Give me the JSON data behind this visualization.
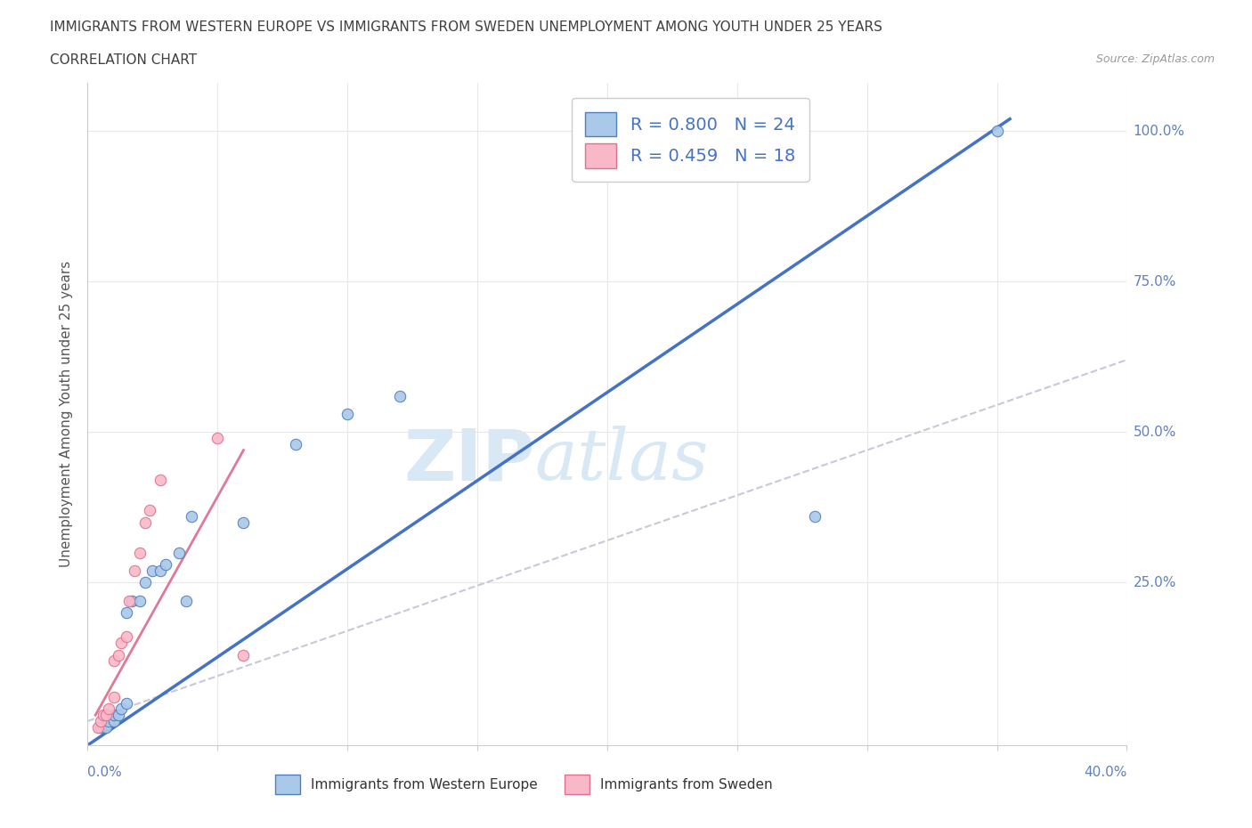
{
  "title_line1": "IMMIGRANTS FROM WESTERN EUROPE VS IMMIGRANTS FROM SWEDEN UNEMPLOYMENT AMONG YOUTH UNDER 25 YEARS",
  "title_line2": "CORRELATION CHART",
  "source_text": "Source: ZipAtlas.com",
  "ylabel": "Unemployment Among Youth under 25 years",
  "xlim": [
    0.0,
    0.4
  ],
  "ylim": [
    -0.02,
    1.08
  ],
  "ytick_vals": [
    0.25,
    0.5,
    0.75,
    1.0
  ],
  "ytick_labels": [
    "25.0%",
    "50.0%",
    "75.0%",
    "100.0%"
  ],
  "xtick_vals": [
    0.0,
    0.05,
    0.1,
    0.15,
    0.2,
    0.25,
    0.3,
    0.35,
    0.4
  ],
  "watermark_zip": "ZIP",
  "watermark_atlas": "atlas",
  "blue_scatter_x": [
    0.005,
    0.007,
    0.008,
    0.01,
    0.01,
    0.012,
    0.013,
    0.015,
    0.015,
    0.017,
    0.02,
    0.022,
    0.025,
    0.028,
    0.03,
    0.035,
    0.038,
    0.04,
    0.06,
    0.08,
    0.1,
    0.12,
    0.28,
    0.35
  ],
  "blue_scatter_y": [
    0.01,
    0.01,
    0.02,
    0.02,
    0.03,
    0.03,
    0.04,
    0.05,
    0.2,
    0.22,
    0.22,
    0.25,
    0.27,
    0.27,
    0.28,
    0.3,
    0.22,
    0.36,
    0.35,
    0.48,
    0.53,
    0.56,
    0.36,
    1.0
  ],
  "pink_scatter_x": [
    0.004,
    0.005,
    0.006,
    0.007,
    0.008,
    0.01,
    0.01,
    0.012,
    0.013,
    0.015,
    0.016,
    0.018,
    0.02,
    0.022,
    0.024,
    0.028,
    0.05,
    0.06
  ],
  "pink_scatter_y": [
    0.01,
    0.02,
    0.03,
    0.03,
    0.04,
    0.06,
    0.12,
    0.13,
    0.15,
    0.16,
    0.22,
    0.27,
    0.3,
    0.35,
    0.37,
    0.42,
    0.49,
    0.13
  ],
  "blue_regline_x": [
    0.0,
    0.355
  ],
  "blue_regline_y": [
    -0.02,
    1.02
  ],
  "pink_regline_x": [
    0.003,
    0.06
  ],
  "pink_regline_y": [
    0.03,
    0.47
  ],
  "diag_line_x": [
    0.0,
    0.4
  ],
  "diag_line_y": [
    0.02,
    0.62
  ],
  "blue_color": "#aac8e8",
  "blue_edge_color": "#5080c0",
  "blue_line_color": "#4472c4",
  "pink_color": "#f8b8c8",
  "pink_edge_color": "#e07090",
  "pink_line_color": "#e07898",
  "diag_color": "#c8c8d8",
  "grid_color": "#e8e8e8",
  "title_color": "#404040",
  "right_axis_color": "#6080c0",
  "watermark_color": "#d8e8f4"
}
